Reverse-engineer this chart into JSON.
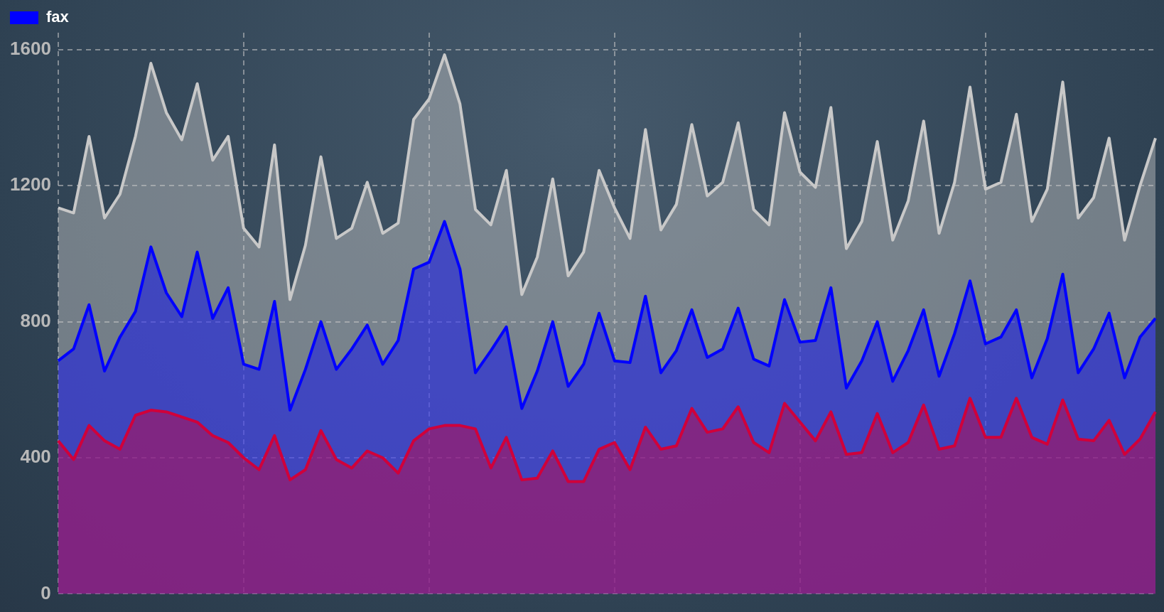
{
  "chart_data": {
    "type": "area",
    "categories": [
      null,
      null,
      null,
      null,
      null,
      null,
      null,
      null,
      null,
      null,
      null,
      null,
      null,
      null,
      null,
      null,
      null,
      null,
      null,
      null,
      null,
      null,
      null,
      null,
      null,
      null,
      null,
      null,
      null,
      null,
      null,
      null,
      null,
      null,
      null,
      null,
      null,
      null,
      null,
      null,
      null,
      null,
      null,
      null,
      null,
      null,
      null,
      null,
      null,
      null,
      null,
      null,
      null,
      null,
      null,
      null,
      null,
      null,
      null,
      null,
      null,
      null,
      null,
      null,
      null,
      null,
      null,
      null,
      null,
      null,
      null,
      null
    ],
    "series": [
      {
        "color": "#c8c8c8",
        "values": [
          1135,
          1120,
          1345,
          1105,
          1175,
          1345,
          1560,
          1415,
          1335,
          1500,
          1275,
          1345,
          1075,
          1020,
          1320,
          865,
          1025,
          1285,
          1045,
          1075,
          1210,
          1060,
          1090,
          1395,
          1455,
          1585,
          1440,
          1130,
          1085,
          1245,
          880,
          990,
          1220,
          935,
          1005,
          1245,
          1135,
          1045,
          1365,
          1070,
          1145,
          1380,
          1170,
          1210,
          1385,
          1130,
          1085,
          1415,
          1240,
          1195,
          1430,
          1015,
          1095,
          1330,
          1040,
          1155,
          1390,
          1060,
          1210,
          1490,
          1190,
          1210,
          1410,
          1095,
          1190,
          1505,
          1105,
          1165,
          1340,
          1040,
          1200,
          1340
        ]
      },
      {
        "name": "fax",
        "color": "#0000ff",
        "values": [
          685,
          720,
          850,
          655,
          755,
          830,
          1020,
          885,
          815,
          1005,
          810,
          900,
          675,
          660,
          860,
          540,
          660,
          800,
          660,
          720,
          790,
          675,
          745,
          955,
          975,
          1095,
          955,
          650,
          715,
          785,
          545,
          655,
          800,
          610,
          675,
          825,
          685,
          680,
          875,
          650,
          715,
          835,
          695,
          720,
          840,
          690,
          670,
          865,
          740,
          745,
          900,
          605,
          685,
          800,
          625,
          715,
          835,
          640,
          765,
          920,
          735,
          755,
          835,
          635,
          750,
          940,
          650,
          720,
          825,
          635,
          755,
          810
        ]
      },
      {
        "color": "#d0003a",
        "values": [
          450,
          395,
          495,
          450,
          425,
          525,
          540,
          535,
          520,
          505,
          465,
          445,
          400,
          365,
          465,
          335,
          365,
          480,
          395,
          370,
          420,
          400,
          355,
          450,
          485,
          495,
          495,
          485,
          370,
          460,
          335,
          340,
          420,
          330,
          330,
          425,
          445,
          365,
          490,
          425,
          435,
          545,
          475,
          485,
          550,
          445,
          415,
          560,
          505,
          450,
          535,
          410,
          415,
          530,
          415,
          445,
          555,
          425,
          435,
          575,
          460,
          460,
          575,
          460,
          440,
          570,
          455,
          450,
          510,
          410,
          455,
          535
        ]
      }
    ],
    "ylim": [
      0,
      1650
    ],
    "yticks": [
      0,
      400,
      800,
      1200,
      1600
    ],
    "tick_labels": "y",
    "grid": true,
    "legend": "top left",
    "marker": "none",
    "line_style": "solid"
  }
}
